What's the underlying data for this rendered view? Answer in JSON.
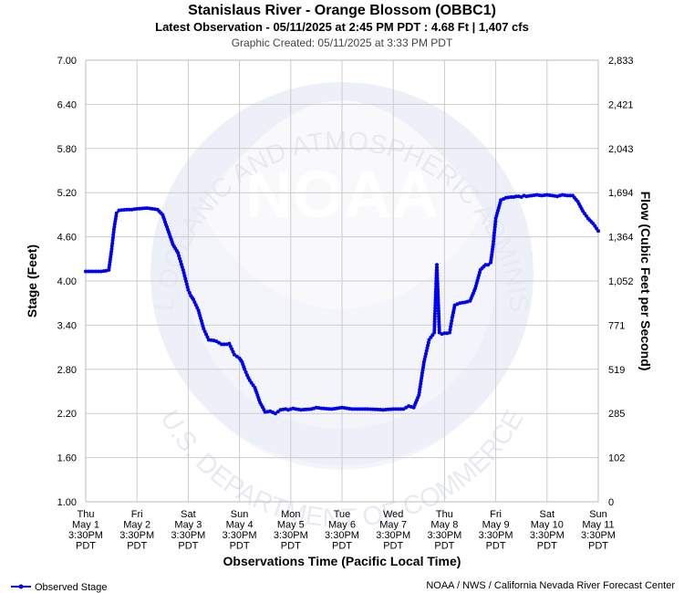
{
  "chart_data": {
    "type": "line",
    "title": "Stanislaus River - Orange Blossom (OBBC1)",
    "subtitle": "Latest Observation - 05/11/2025 at 2:45 PM PDT : 4.68 Ft | 1,407 cfs",
    "caption": "Graphic Created: 05/11/2025 at 3:33 PM PDT",
    "xlabel": "Observations Time (Pacific Local Time)",
    "ylabel": "Stage (Feet)",
    "y2label": "Flow (Cubic Feet per Second)",
    "ylim": [
      1.0,
      7.0
    ],
    "xlim": [
      0,
      10
    ],
    "grid": true,
    "y_ticks": [
      "1.00",
      "1.60",
      "2.20",
      "2.80",
      "3.40",
      "4.00",
      "4.60",
      "5.20",
      "5.80",
      "6.40",
      "7.00"
    ],
    "y2_ticks": [
      "0",
      "102",
      "285",
      "519",
      "771",
      "1,052",
      "1,364",
      "1,694",
      "2,043",
      "2,421",
      "2,833"
    ],
    "x_ticks": [
      [
        "Thu",
        "May 1",
        "3:30PM",
        "PDT"
      ],
      [
        "Fri",
        "May 2",
        "3:30PM",
        "PDT"
      ],
      [
        "Sat",
        "May 3",
        "3:30PM",
        "PDT"
      ],
      [
        "Sun",
        "May 4",
        "3:30PM",
        "PDT"
      ],
      [
        "Mon",
        "May 5",
        "3:30PM",
        "PDT"
      ],
      [
        "Tue",
        "May 6",
        "3:30PM",
        "PDT"
      ],
      [
        "Wed",
        "May 7",
        "3:30PM",
        "PDT"
      ],
      [
        "Thu",
        "May 8",
        "3:30PM",
        "PDT"
      ],
      [
        "Fri",
        "May 9",
        "3:30PM",
        "PDT"
      ],
      [
        "Sat",
        "May 10",
        "3:30PM",
        "PDT"
      ],
      [
        "Sun",
        "May 11",
        "3:30PM",
        "PDT"
      ]
    ],
    "series": [
      {
        "name": "Observed Stage",
        "color": "#0000ee",
        "x": [
          0,
          0.3,
          0.4,
          0.45,
          0.5,
          0.55,
          0.6,
          0.65,
          0.8,
          0.9,
          1.0,
          1.2,
          1.3,
          1.4,
          1.5,
          1.6,
          1.7,
          1.8,
          1.9,
          2.0,
          2.05,
          2.1,
          2.2,
          2.3,
          2.4,
          2.5,
          2.55,
          2.6,
          2.65,
          2.75,
          2.8,
          2.9,
          3.0,
          3.05,
          3.1,
          3.15,
          3.2,
          3.3,
          3.35,
          3.4,
          3.5,
          3.6,
          3.7,
          3.8,
          3.9,
          3.95,
          4.0,
          4.05,
          4.1,
          4.2,
          4.4,
          4.5,
          4.6,
          4.8,
          5.0,
          5.2,
          5.5,
          5.8,
          6.0,
          6.2,
          6.3,
          6.4,
          6.5,
          6.6,
          6.7,
          6.8,
          6.85,
          6.9,
          6.95,
          7.0,
          7.05,
          7.1,
          7.15,
          7.2,
          7.3,
          7.4,
          7.45,
          7.5,
          7.6,
          7.7,
          7.8,
          7.85,
          7.9,
          7.95,
          8.0,
          8.1,
          8.2,
          8.3,
          8.35,
          8.4,
          8.45,
          8.5,
          8.55,
          8.6,
          8.7,
          8.8,
          8.9,
          9.0,
          9.2,
          9.3,
          9.4,
          9.5,
          9.6,
          9.7,
          9.8,
          9.9,
          10.0
        ],
        "values": [
          4.13,
          4.13,
          4.14,
          4.15,
          4.4,
          4.7,
          4.92,
          4.96,
          4.97,
          4.97,
          4.98,
          4.99,
          4.98,
          4.97,
          4.9,
          4.7,
          4.5,
          4.38,
          4.15,
          3.88,
          3.8,
          3.75,
          3.6,
          3.35,
          3.2,
          3.19,
          3.18,
          3.16,
          3.14,
          3.14,
          3.15,
          3.0,
          2.95,
          2.9,
          2.8,
          2.72,
          2.65,
          2.55,
          2.45,
          2.35,
          2.22,
          2.23,
          2.2,
          2.25,
          2.26,
          2.25,
          2.26,
          2.27,
          2.26,
          2.25,
          2.26,
          2.28,
          2.27,
          2.26,
          2.28,
          2.26,
          2.26,
          2.25,
          2.26,
          2.26,
          2.3,
          2.28,
          2.45,
          2.9,
          3.2,
          3.3,
          4.22,
          3.3,
          3.28,
          3.29,
          3.29,
          3.3,
          3.5,
          3.67,
          3.7,
          3.71,
          3.72,
          3.73,
          3.9,
          4.15,
          4.22,
          4.22,
          4.25,
          4.5,
          4.85,
          5.1,
          5.13,
          5.14,
          5.14,
          5.15,
          5.15,
          5.14,
          5.16,
          5.15,
          5.16,
          5.17,
          5.16,
          5.17,
          5.15,
          5.17,
          5.16,
          5.16,
          5.08,
          4.95,
          4.85,
          4.78,
          4.68
        ]
      }
    ],
    "legend": {
      "label": "Observed Stage",
      "position": "bottom-left"
    },
    "footer": "NOAA / NWS / California Nevada River Forecast Center",
    "watermark": {
      "logo_text": "NOAA",
      "arc_top": "NATIONAL OCEANIC AND ATMOSPHERIC ADMINISTRATION",
      "arc_bottom": "U.S. DEPARTMENT OF COMMERCE"
    }
  }
}
